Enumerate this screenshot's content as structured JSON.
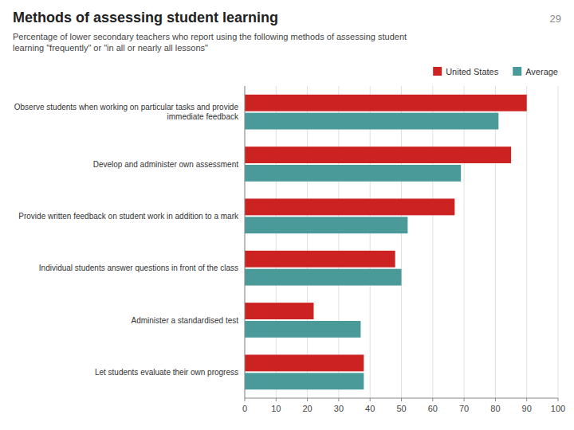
{
  "chart_data": {
    "type": "bar",
    "orientation": "horizontal",
    "title": "Methods of assessing student learning",
    "subtitle": "Percentage of lower secondary teachers who report using the following methods of assessing student\nlearning \"frequently\" or \"in all or nearly all lessons\"",
    "annotations": [
      "29"
    ],
    "categories": [
      "Observe students when working on particular tasks and provide\nimmediate feedback",
      "Develop and administer own assessment",
      "Provide written feedback on student work in addition to a mark",
      "Individual students answer questions in front of the class",
      "Administer a standardised test",
      "Let students evaluate their own progress"
    ],
    "series": [
      {
        "name": "United States",
        "color": "#cc2222",
        "values": [
          90,
          85,
          67,
          48,
          22,
          38
        ]
      },
      {
        "name": "Average",
        "color": "#4a9a9a",
        "values": [
          81,
          69,
          52,
          50,
          37,
          38
        ]
      }
    ],
    "xlim": [
      0,
      100
    ],
    "xticks": [
      0,
      10,
      20,
      30,
      40,
      50,
      60,
      70,
      80,
      90,
      100
    ],
    "grid": true,
    "legend": "top"
  }
}
